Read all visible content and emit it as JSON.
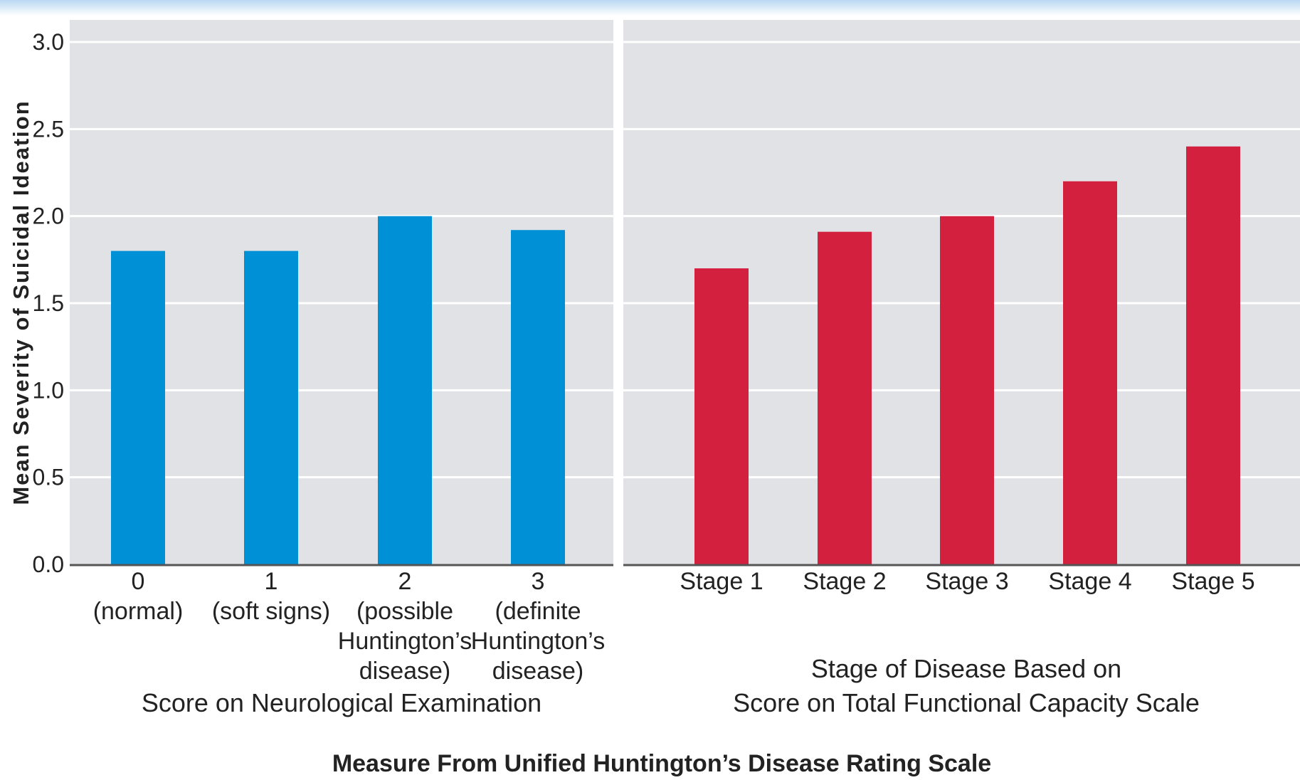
{
  "chart_data": {
    "type": "bar",
    "ylabel": "Mean Severity of Suicidal Ideation",
    "ylim": [
      0,
      3.0
    ],
    "yticks": [
      "0.0",
      "0.5",
      "1.0",
      "1.5",
      "2.0",
      "2.5",
      "3.0"
    ],
    "grid": true,
    "common_xlabel": "Measure From Unified Huntington’s Disease Rating Scale",
    "panels": [
      {
        "xlabel": [
          "Score on Neurological Examination"
        ],
        "color": "#0090d6",
        "categories": [
          [
            "0",
            "(normal)"
          ],
          [
            "1",
            "(soft signs)"
          ],
          [
            "2",
            "(possible",
            "Huntington’s",
            "disease)"
          ],
          [
            "3",
            "(definite",
            "Huntington’s",
            "disease)"
          ]
        ],
        "values": [
          1.8,
          1.8,
          2.0,
          1.92
        ]
      },
      {
        "xlabel": [
          "Stage of Disease Based on",
          "Score on Total Functional Capacity Scale"
        ],
        "color": "#d3203f",
        "categories": [
          [
            "Stage 1"
          ],
          [
            "Stage 2"
          ],
          [
            "Stage 3"
          ],
          [
            "Stage 4"
          ],
          [
            "Stage 5"
          ]
        ],
        "values": [
          1.7,
          1.91,
          2.0,
          2.2,
          2.4
        ]
      }
    ]
  }
}
